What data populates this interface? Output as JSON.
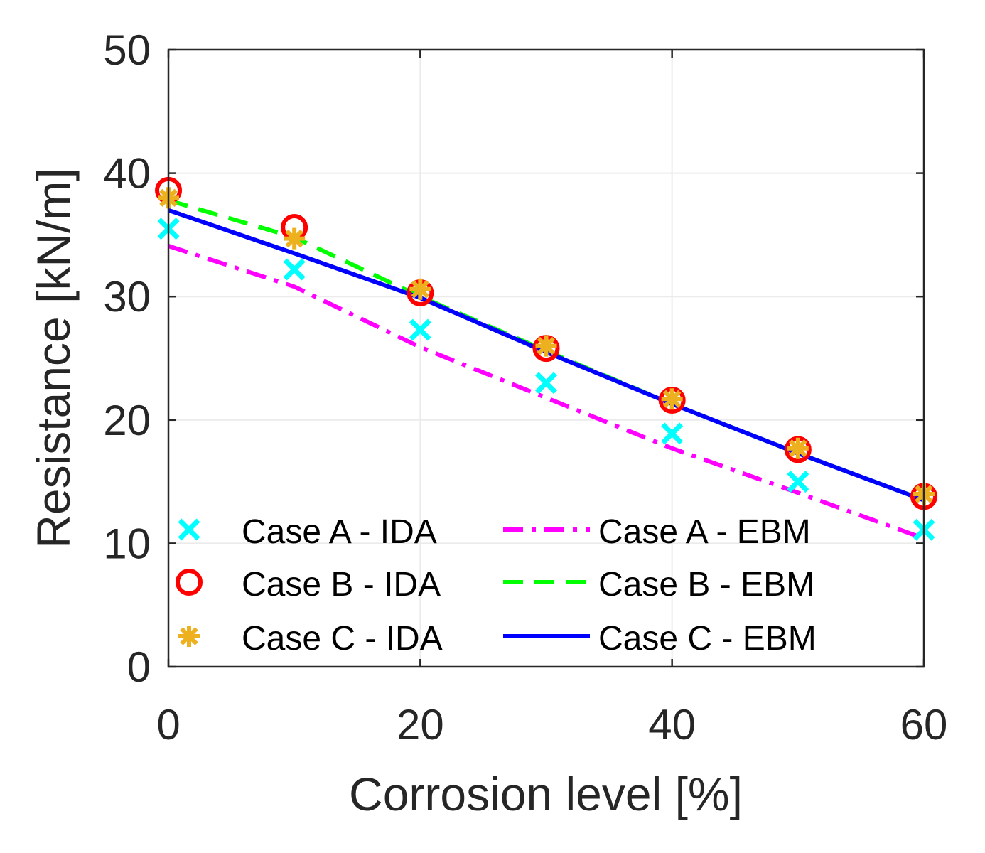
{
  "chart_data": {
    "type": "line",
    "xlabel": "Corrosion level [%]",
    "ylabel": "Resistance [kN/m]",
    "xlim": [
      0,
      60
    ],
    "ylim": [
      0,
      50
    ],
    "xticks": [
      0,
      20,
      40,
      60
    ],
    "yticks": [
      0,
      10,
      20,
      30,
      40,
      50
    ],
    "grid": true,
    "legend_position": "bottom",
    "x": [
      0,
      10,
      20,
      30,
      40,
      50,
      60
    ],
    "series": [
      {
        "name": "Case A - IDA",
        "kind": "marker",
        "marker": "x",
        "color": "#00ffff",
        "values": [
          35.5,
          32.2,
          27.3,
          23.0,
          18.9,
          15.0,
          11.1
        ]
      },
      {
        "name": "Case B - IDA",
        "kind": "marker",
        "marker": "circle",
        "color": "#ff0000",
        "values": [
          38.6,
          35.6,
          30.3,
          25.8,
          21.6,
          17.6,
          13.8
        ]
      },
      {
        "name": "Case C - IDA",
        "kind": "marker",
        "marker": "asterisk",
        "color": "#edb120",
        "values": [
          38.0,
          34.7,
          30.6,
          26.0,
          21.7,
          17.7,
          14.0
        ]
      },
      {
        "name": "Case A - EBM",
        "kind": "line",
        "dash": "dashdot",
        "color": "#ff00ff",
        "values": [
          34.1,
          30.8,
          25.9,
          21.8,
          17.7,
          14.1,
          10.4
        ]
      },
      {
        "name": "Case B - EBM",
        "kind": "line",
        "dash": "dashed",
        "color": "#00ff00",
        "values": [
          37.8,
          34.8,
          30.0,
          25.6,
          21.3,
          17.3,
          13.5
        ]
      },
      {
        "name": "Case C - EBM",
        "kind": "line",
        "dash": "solid",
        "color": "#0000ff",
        "values": [
          37.0,
          33.5,
          29.9,
          25.5,
          21.3,
          17.3,
          13.5
        ]
      }
    ]
  }
}
